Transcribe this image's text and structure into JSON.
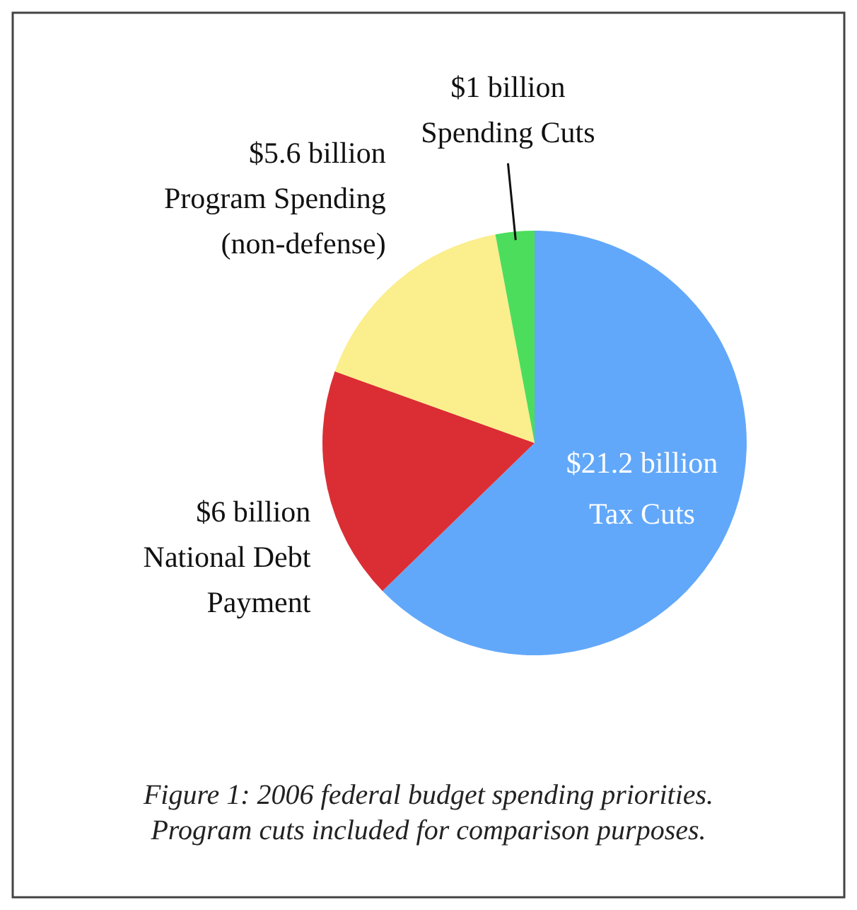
{
  "chart_data": {
    "type": "pie",
    "categories": [
      "Tax Cuts",
      "National Debt Payment",
      "Program Spending (non-defense)",
      "Spending Cuts"
    ],
    "values": [
      21.2,
      6,
      5.6,
      1
    ],
    "value_labels": [
      "$21.2 billion",
      "$6 billion",
      "$5.6 billion",
      "$1 billion"
    ],
    "colors": [
      "#62a8fa",
      "#db2e34",
      "#fbee8c",
      "#4cdd5c"
    ],
    "annotations": [
      "Figure 1: 2006 federal budget spending priorities.",
      "Program cuts included for comparison purposes."
    ]
  }
}
